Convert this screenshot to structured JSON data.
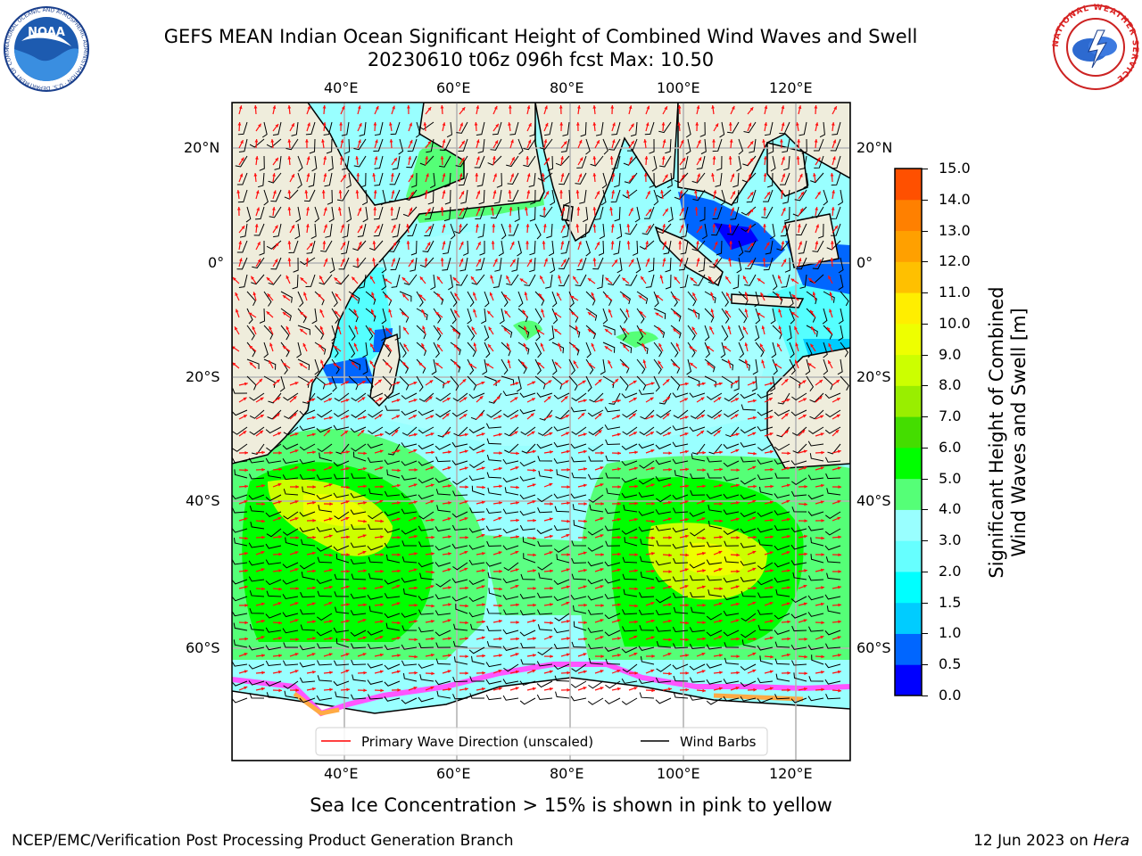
{
  "title": {
    "line1": "GEFS MEAN Indian Ocean Significant Height of Combined Wind Waves and Swell",
    "line2": "20230610 t06z 096h fcst   Max: 10.50"
  },
  "logos": {
    "left": "NOAA",
    "left_ring_text": "NATIONAL OCEANIC AND ATMOSPHERIC ADMINISTRATION · U.S. DEPARTMENT OF COMMERCE",
    "right_ring_text": "NATIONAL WEATHER SERVICE"
  },
  "map": {
    "lon_ticks": [
      "40°E",
      "60°E",
      "80°E",
      "100°E",
      "120°E"
    ],
    "lat_ticks": [
      "20°N",
      "0°",
      "20°S",
      "40°S",
      "60°S"
    ],
    "legend": {
      "wave_dir": "Primary Wave Direction (unscaled)",
      "wind_barbs": "Wind Barbs"
    },
    "colors": {
      "land": "#efeddc",
      "sea_ice_note_colors": [
        "#ff55ff",
        "#ffaa44",
        "#ffff66"
      ]
    }
  },
  "colorbar": {
    "ticks": [
      "15.0",
      "14.0",
      "13.0",
      "12.0",
      "11.0",
      "10.0",
      "9.0",
      "8.0",
      "7.0",
      "6.0",
      "5.0",
      "4.0",
      "3.0",
      "2.0",
      "1.5",
      "1.0",
      "0.5",
      "0.0"
    ],
    "colors": [
      "#0000ff",
      "#0066ff",
      "#00ccff",
      "#00ffff",
      "#66ffff",
      "#99ffff",
      "#55ff77",
      "#00ff00",
      "#44dd00",
      "#99ee00",
      "#ccff00",
      "#eeff00",
      "#ffee00",
      "#ffc000",
      "#ffa000",
      "#ff8000",
      "#ff5000",
      "#ff2000",
      "#ff0000"
    ],
    "label_line1": "Significant Height of Combined",
    "label_line2": "Wind Waves and Swell [m]"
  },
  "caption": "Sea Ice Concentration > 15% is shown in pink to yellow",
  "footer": {
    "left": "NCEP/EMC/Verification Post Processing Product Generation Branch",
    "right_date": "12 Jun 2023 on ",
    "right_host": "Hera"
  }
}
